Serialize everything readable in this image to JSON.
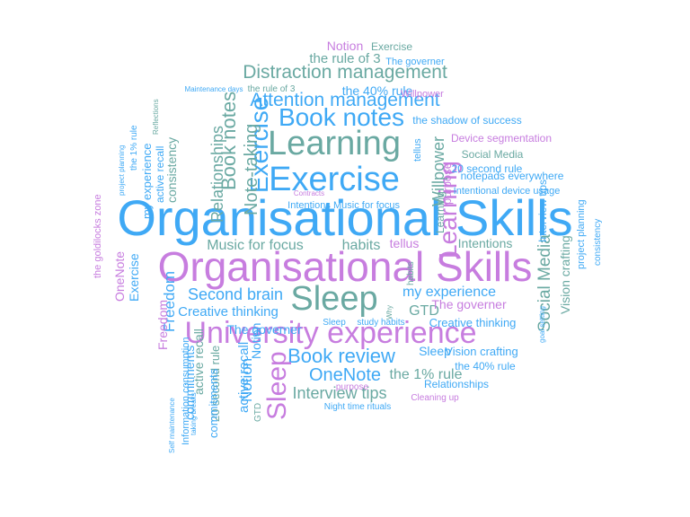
{
  "palette": {
    "blue": "#3fa9f5",
    "purple": "#c77ddf",
    "teal": "#6aa9a2",
    "background": "#ffffff"
  },
  "words": [
    {
      "text": "Organisational Skills",
      "color": "blue"
    },
    {
      "text": "Organisational Skills",
      "color": "purple"
    },
    {
      "text": "University experience",
      "color": "purple"
    },
    {
      "text": "Exercise",
      "color": "blue"
    },
    {
      "text": "Learning",
      "color": "teal"
    },
    {
      "text": "Sleep",
      "color": "teal"
    },
    {
      "text": "Book notes",
      "color": "blue"
    },
    {
      "text": "Exercise",
      "color": "blue"
    },
    {
      "text": "Distraction management",
      "color": "teal"
    },
    {
      "text": "Attention management",
      "color": "blue"
    },
    {
      "text": "Book review",
      "color": "blue"
    },
    {
      "text": "Sleep",
      "color": "purple"
    },
    {
      "text": "Learning",
      "color": "purple"
    },
    {
      "text": "Book notes",
      "color": "teal"
    },
    {
      "text": "Note-taking",
      "color": "teal"
    },
    {
      "text": "Relationships",
      "color": "teal"
    },
    {
      "text": "Social Media",
      "color": "teal"
    },
    {
      "text": "Willpower",
      "color": "teal"
    },
    {
      "text": "OneNote",
      "color": "blue"
    },
    {
      "text": "Interview tips",
      "color": "teal"
    },
    {
      "text": "Second brain",
      "color": "blue"
    },
    {
      "text": "Music for focus",
      "color": "teal"
    },
    {
      "text": "habits",
      "color": "teal"
    },
    {
      "text": "my experience",
      "color": "blue"
    },
    {
      "text": "GTD",
      "color": "teal"
    },
    {
      "text": "Freedom",
      "color": "blue"
    },
    {
      "text": "Notion",
      "color": "blue"
    },
    {
      "text": "the 1% rule",
      "color": "teal"
    },
    {
      "text": "the rule of 3",
      "color": "teal"
    },
    {
      "text": "the 40% rule",
      "color": "blue"
    },
    {
      "text": "Notion",
      "color": "purple"
    },
    {
      "text": "Exercise",
      "color": "teal"
    },
    {
      "text": "The governer",
      "color": "blue"
    },
    {
      "text": "the shadow of success",
      "color": "blue"
    },
    {
      "text": "Device segmentation",
      "color": "purple"
    },
    {
      "text": "Social Media",
      "color": "teal"
    },
    {
      "text": "20 second rule",
      "color": "blue"
    },
    {
      "text": "notepads everywhere",
      "color": "blue"
    },
    {
      "text": "Intentional device usage",
      "color": "blue"
    },
    {
      "text": "Intentions",
      "color": "blue"
    },
    {
      "text": "Music for focus",
      "color": "blue"
    },
    {
      "text": "tellus",
      "color": "purple"
    },
    {
      "text": "Intentions",
      "color": "teal"
    },
    {
      "text": "Vision crafting",
      "color": "teal"
    },
    {
      "text": "Creative thinking",
      "color": "blue"
    },
    {
      "text": "The governer",
      "color": "purple"
    },
    {
      "text": "Creative thinking",
      "color": "blue"
    },
    {
      "text": "Sleep",
      "color": "blue"
    },
    {
      "text": "Vision crafting",
      "color": "blue"
    },
    {
      "text": "the 40% rule",
      "color": "blue"
    },
    {
      "text": "Relationships",
      "color": "blue"
    },
    {
      "text": "Cleaning up",
      "color": "purple"
    },
    {
      "text": "Night time rituals",
      "color": "blue"
    },
    {
      "text": "purpose",
      "color": "purple"
    },
    {
      "text": "Willpower",
      "color": "purple"
    },
    {
      "text": "the rule of 3",
      "color": "teal"
    },
    {
      "text": "Maintenance days",
      "color": "blue"
    },
    {
      "text": "The governer",
      "color": "blue"
    },
    {
      "text": "Exercise",
      "color": "blue"
    },
    {
      "text": "Freedom",
      "color": "purple"
    },
    {
      "text": "OneNote",
      "color": "purple"
    },
    {
      "text": "consistency",
      "color": "teal"
    },
    {
      "text": "commitments",
      "color": "blue"
    },
    {
      "text": "active recall",
      "color": "teal"
    },
    {
      "text": "20 second rule",
      "color": "teal"
    },
    {
      "text": "commitments",
      "color": "blue"
    },
    {
      "text": "active recall",
      "color": "blue"
    },
    {
      "text": "Notion",
      "color": "blue"
    },
    {
      "text": "Information consumption",
      "color": "blue"
    },
    {
      "text": "GTD",
      "color": "teal"
    },
    {
      "text": "Self maintenance",
      "color": "blue"
    },
    {
      "text": "taking breaks",
      "color": "blue"
    },
    {
      "text": "the goldilocks zone",
      "color": "purple"
    },
    {
      "text": "project planning",
      "color": "blue"
    },
    {
      "text": "the 1% rule",
      "color": "blue"
    },
    {
      "text": "my experience",
      "color": "blue"
    },
    {
      "text": "active recall",
      "color": "blue"
    },
    {
      "text": "Reflections",
      "color": "teal"
    },
    {
      "text": "Contracts",
      "color": "purple"
    },
    {
      "text": "Sleep",
      "color": "blue"
    },
    {
      "text": "study habits",
      "color": "blue"
    },
    {
      "text": "habits",
      "color": "teal"
    },
    {
      "text": "purpose",
      "color": "purple"
    },
    {
      "text": "Learning",
      "color": "teal"
    },
    {
      "text": "tellus",
      "color": "blue"
    },
    {
      "text": "Interview tips",
      "color": "blue"
    },
    {
      "text": "project planning",
      "color": "blue"
    },
    {
      "text": "consistency",
      "color": "blue"
    },
    {
      "text": "goal setting",
      "color": "blue"
    },
    {
      "text": "Why",
      "color": "teal"
    }
  ]
}
